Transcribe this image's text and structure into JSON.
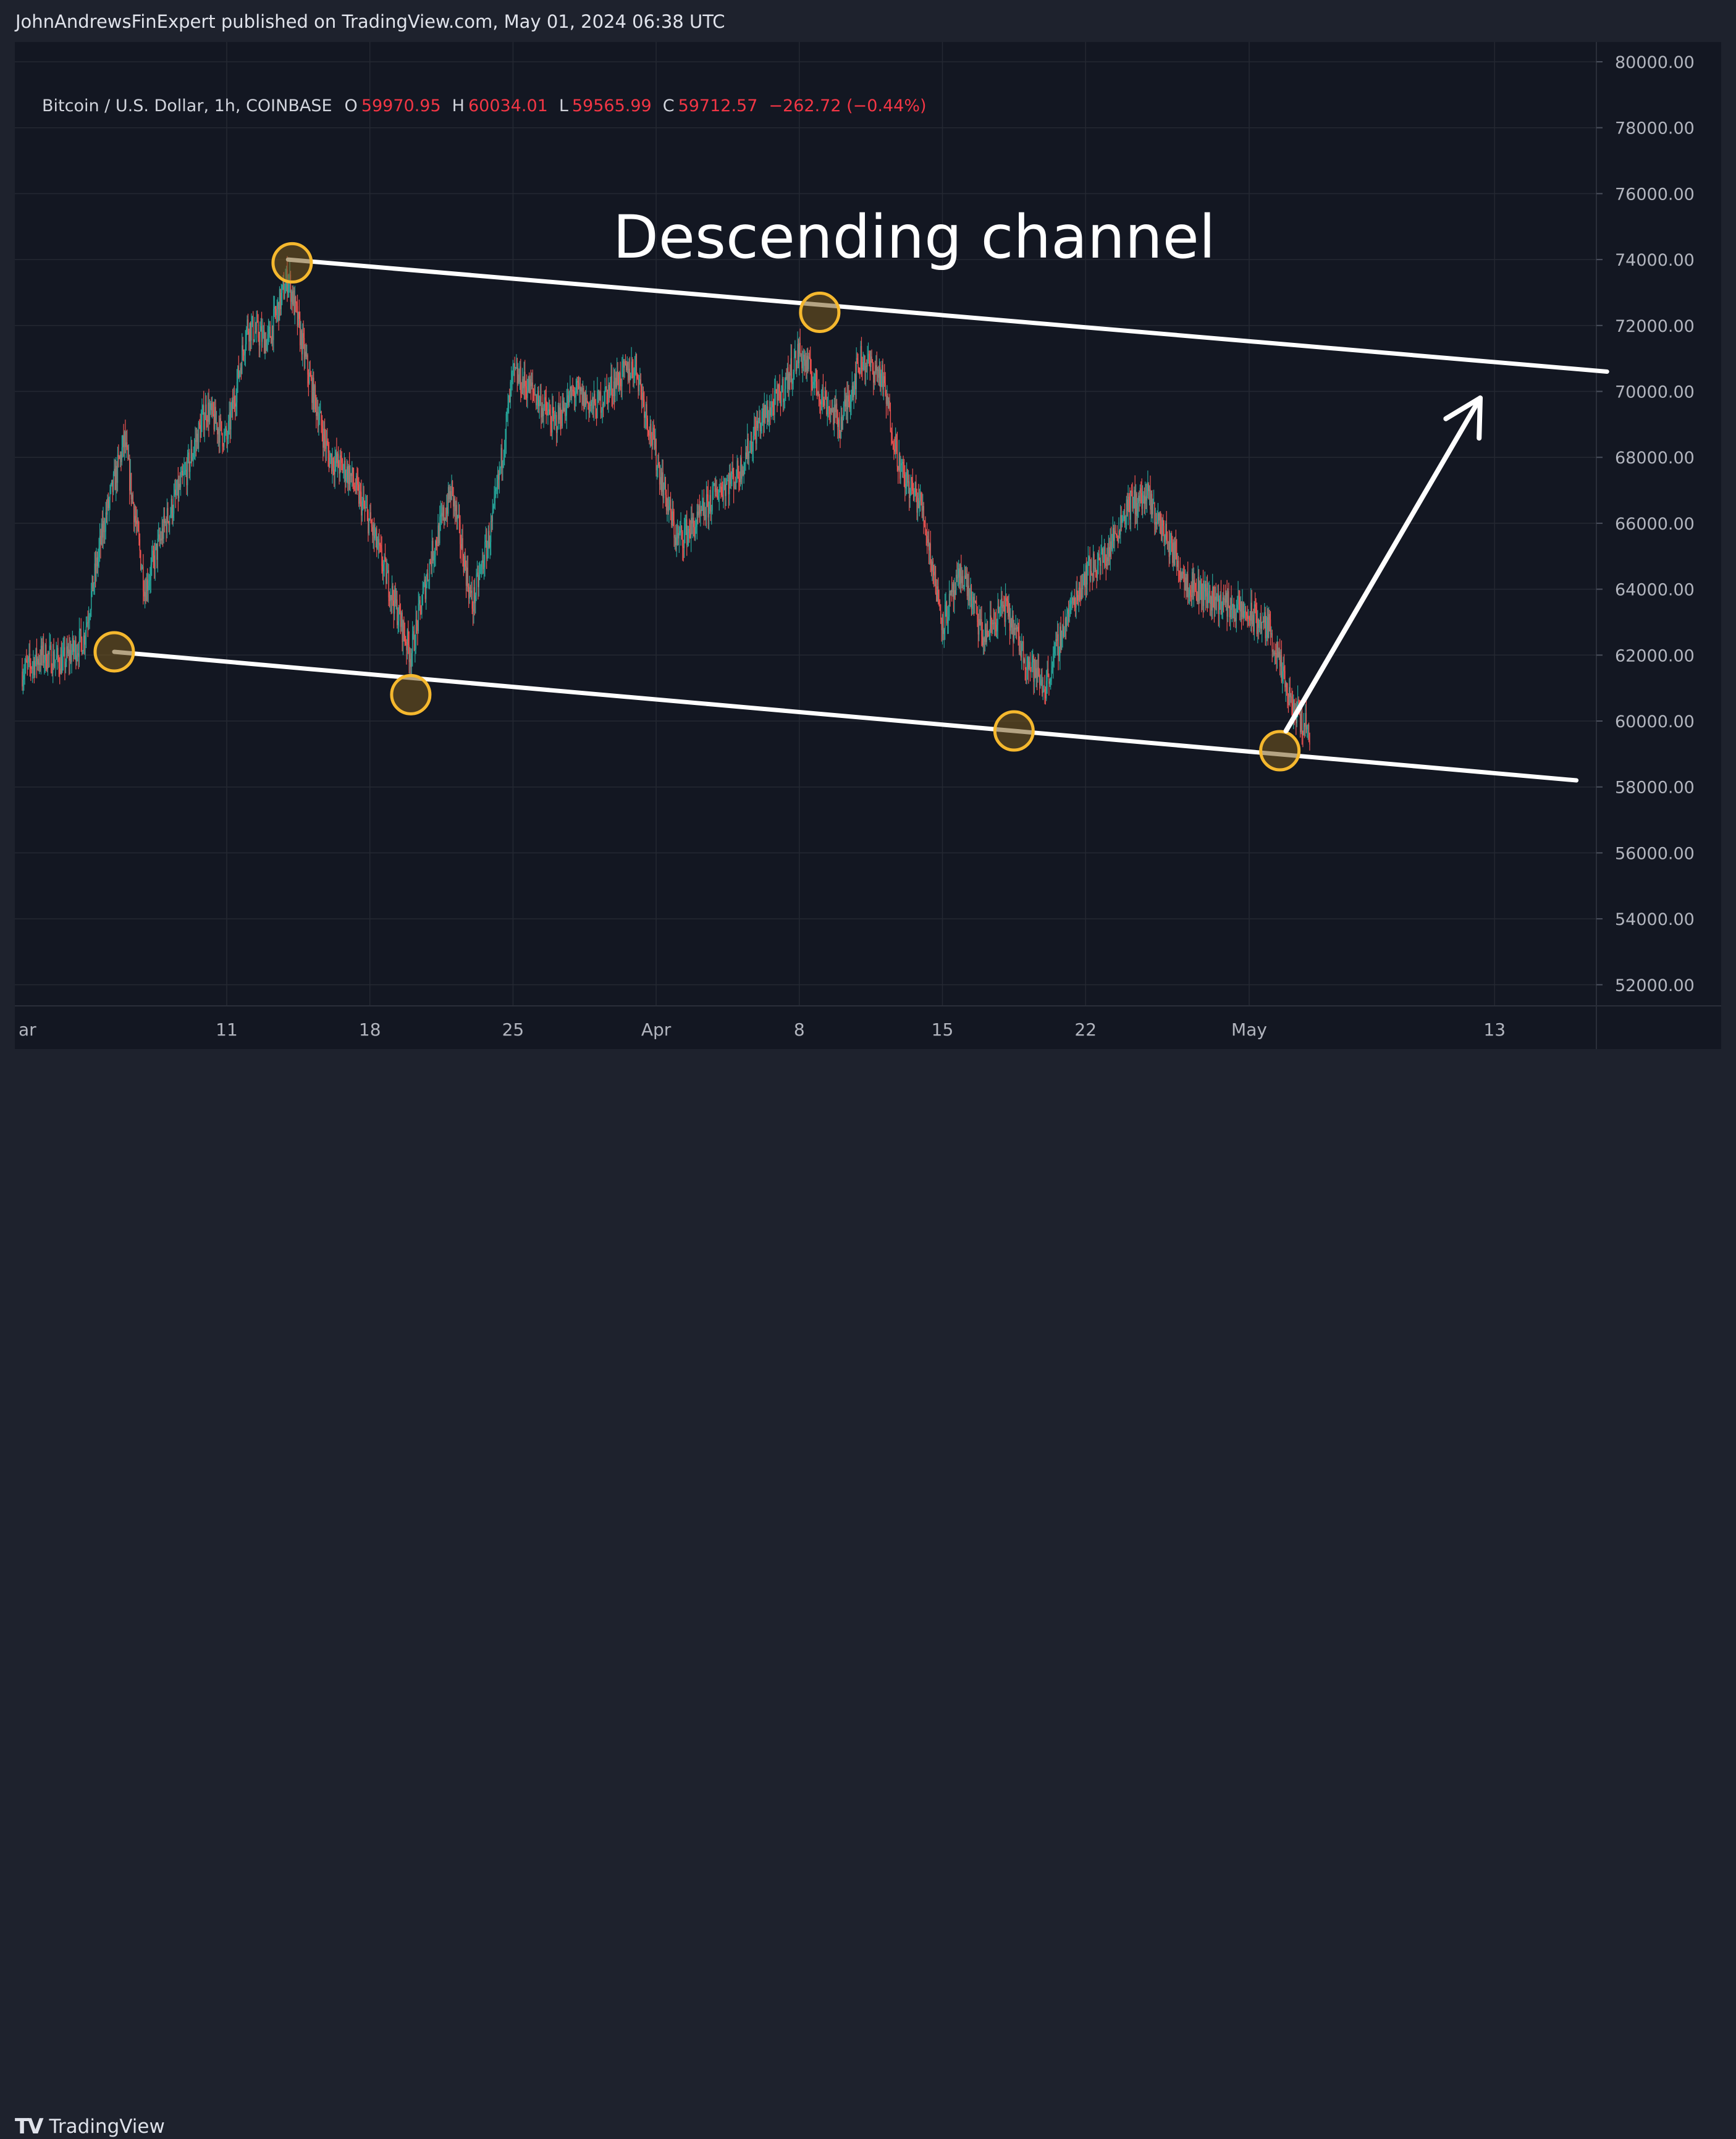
{
  "published_line": "JohnAndrewsFinExpert published on TradingView.com, May 01, 2024 06:38 UTC",
  "legend": {
    "symbol": "Bitcoin / U.S. Dollar, 1h, COINBASE",
    "o_label": "O",
    "o_value": "59970.95",
    "h_label": "H",
    "h_value": "60034.01",
    "l_label": "L",
    "l_value": "59565.99",
    "c_label": "C",
    "c_value": "59712.57",
    "change": "−262.72 (−0.44%)"
  },
  "annotation_title": "Descending channel",
  "footer_brand": "TradingView",
  "colors": {
    "background": "#131722",
    "up": "#26a69a",
    "down": "#ef5350",
    "annotation": "#ffffff",
    "marker": "#f5b82e"
  },
  "chart_data": {
    "type": "candlestick",
    "timeframe": "1h",
    "ylim": [
      51000,
      80500
    ],
    "y_ticks": [
      "80000.00",
      "78000.00",
      "76000.00",
      "74000.00",
      "72000.00",
      "70000.00",
      "68000.00",
      "66000.00",
      "64000.00",
      "62000.00",
      "60000.00",
      "58000.00",
      "56000.00",
      "54000.00",
      "52000.00"
    ],
    "x_ticks": [
      {
        "day": -1,
        "label": "ar"
      },
      {
        "day": 10,
        "label": "11"
      },
      {
        "day": 17,
        "label": "18"
      },
      {
        "day": 24,
        "label": "25"
      },
      {
        "day": 31,
        "label": "Apr"
      },
      {
        "day": 38,
        "label": "8"
      },
      {
        "day": 45,
        "label": "15"
      },
      {
        "day": 52,
        "label": "22"
      },
      {
        "day": 60,
        "label": "May"
      },
      {
        "day": 72,
        "label": "13"
      }
    ],
    "price_path": [
      [
        0,
        61500
      ],
      [
        1,
        62000
      ],
      [
        2,
        61800
      ],
      [
        3,
        62500
      ],
      [
        4,
        66000
      ],
      [
        5,
        68500
      ],
      [
        6,
        64000
      ],
      [
        7,
        66000
      ],
      [
        8,
        67500
      ],
      [
        9,
        69500
      ],
      [
        10,
        68500
      ],
      [
        11,
        72000
      ],
      [
        12,
        71500
      ],
      [
        13,
        73500
      ],
      [
        14,
        70500
      ],
      [
        15,
        68000
      ],
      [
        16,
        67500
      ],
      [
        17,
        66000
      ],
      [
        18,
        64000
      ],
      [
        19,
        62000
      ],
      [
        20,
        65000
      ],
      [
        21,
        67000
      ],
      [
        22,
        63500
      ],
      [
        23,
        66000
      ],
      [
        24,
        70500
      ],
      [
        25,
        70000
      ],
      [
        26,
        69000
      ],
      [
        27,
        70000
      ],
      [
        28,
        69500
      ],
      [
        29,
        70300
      ],
      [
        30,
        70800
      ],
      [
        31,
        68000
      ],
      [
        32,
        65500
      ],
      [
        33,
        66000
      ],
      [
        34,
        67000
      ],
      [
        35,
        67500
      ],
      [
        36,
        69000
      ],
      [
        37,
        69800
      ],
      [
        38,
        71200
      ],
      [
        39,
        70000
      ],
      [
        40,
        69000
      ],
      [
        41,
        71000
      ],
      [
        42,
        70500
      ],
      [
        43,
        67500
      ],
      [
        44,
        66500
      ],
      [
        45,
        63000
      ],
      [
        46,
        64500
      ],
      [
        47,
        62500
      ],
      [
        48,
        63500
      ],
      [
        49,
        62000
      ],
      [
        50,
        61000
      ],
      [
        51,
        63000
      ],
      [
        52,
        64500
      ],
      [
        53,
        65000
      ],
      [
        54,
        66500
      ],
      [
        55,
        66800
      ],
      [
        56,
        65500
      ],
      [
        57,
        64200
      ],
      [
        58,
        63800
      ],
      [
        59,
        63500
      ],
      [
        60,
        63200
      ],
      [
        61,
        62800
      ],
      [
        62,
        60500
      ],
      [
        63,
        59700
      ]
    ],
    "channel": {
      "upper": [
        {
          "day": 13.0,
          "price": 74000
        },
        {
          "day": 77.5,
          "price": 70600
        }
      ],
      "lower": [
        {
          "day": 4.5,
          "price": 62100
        },
        {
          "day": 76.0,
          "price": 58200
        }
      ]
    },
    "touch_points": [
      {
        "day": 4.5,
        "price": 62100
      },
      {
        "day": 13.2,
        "price": 73900
      },
      {
        "day": 19.0,
        "price": 60800
      },
      {
        "day": 39.0,
        "price": 72400
      },
      {
        "day": 48.5,
        "price": 59700
      },
      {
        "day": 61.5,
        "price": 59100
      }
    ],
    "projection_arrow": {
      "from": {
        "day": 61.8,
        "price": 59700
      },
      "to": {
        "day": 71.3,
        "price": 69800
      }
    }
  }
}
